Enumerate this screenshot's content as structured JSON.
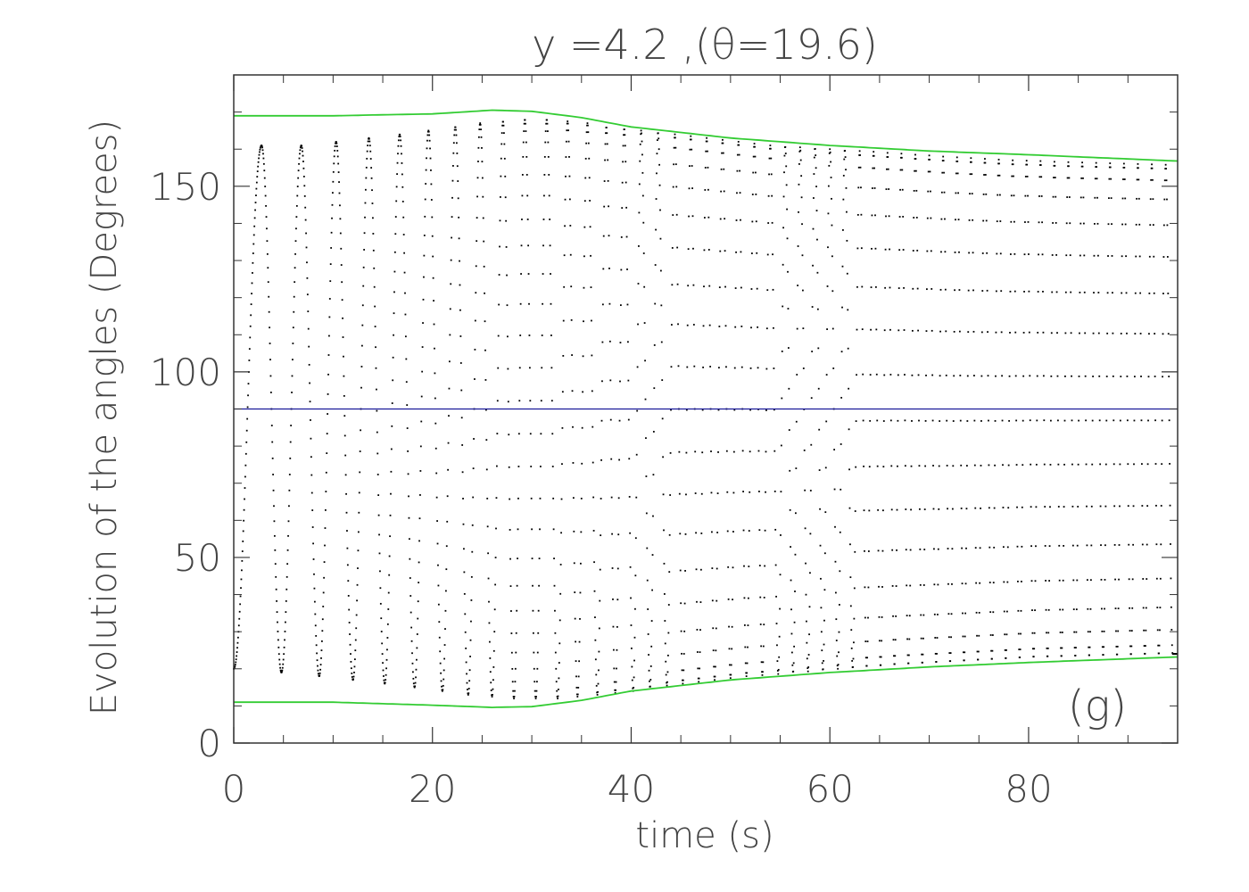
{
  "chart_data": {
    "type": "scatter",
    "title": "y  =4.2  ,(θ=19.6)",
    "xlabel": "time (s)",
    "ylabel": "Evolution of the angles (Degrees)",
    "annotation": "(g)",
    "xlim": [
      0,
      95
    ],
    "ylim": [
      0,
      180
    ],
    "x_ticks": [
      0,
      20,
      40,
      60,
      80
    ],
    "x_tick_labels": [
      "0",
      "20",
      "40",
      "60",
      "80"
    ],
    "y_ticks": [
      0,
      50,
      100,
      150
    ],
    "y_tick_labels": [
      "0",
      "50",
      "100",
      "150"
    ],
    "grid": false,
    "colors": {
      "upper_envelope": "#33cc33",
      "lower_envelope": "#33cc33",
      "reference": "#1a1a99",
      "points": "#000000"
    },
    "series": [
      {
        "kind": "envelope",
        "x": [
          0,
          10,
          20,
          26,
          30,
          35,
          40,
          50,
          60,
          70,
          80,
          95
        ],
        "y": [
          169,
          169,
          169.5,
          170.5,
          170.2,
          168.5,
          166,
          163,
          161,
          159.5,
          158.5,
          156.8
        ]
      },
      {
        "kind": "envelope",
        "x": [
          0,
          10,
          20,
          26,
          30,
          35,
          40,
          50,
          60,
          70,
          80,
          95
        ],
        "y": [
          11,
          11,
          10.2,
          9.6,
          9.8,
          11.5,
          14,
          17,
          19,
          20.5,
          21.7,
          23.2
        ]
      },
      {
        "kind": "reference",
        "x": [
          0,
          95
        ],
        "y": [
          90,
          90
        ]
      },
      {
        "kind": "oscillation",
        "peak_times": [
          2.8,
          6.8,
          10.3,
          13.6,
          16.7,
          19.6,
          22.3,
          24.8,
          27.1,
          29.3,
          31.5,
          33.6,
          35.6,
          37.5,
          39.3,
          41.0,
          42.7,
          44.4,
          46.0,
          47.6,
          49.2,
          50.8,
          52.4,
          54.0,
          55.5,
          57.0,
          58.5,
          60.0,
          61.5,
          63.0,
          64.4,
          65.8,
          67.2,
          68.6,
          70.0,
          71.4,
          72.8,
          74.2,
          75.6,
          77.0,
          78.4,
          79.8,
          81.2,
          82.6,
          84.0,
          85.4,
          86.8,
          88.2,
          89.6,
          91.0,
          92.4,
          93.8
        ],
        "peak_values": [
          161,
          161,
          162,
          163,
          164,
          165,
          166,
          167,
          167.5,
          168,
          168,
          167.5,
          167,
          166,
          165.5,
          165,
          164.5,
          164,
          163.5,
          163,
          162.5,
          162,
          161.5,
          161,
          160.8,
          160.5,
          160.3,
          160,
          159.8,
          159.5,
          159.3,
          159,
          158.8,
          158.5,
          158.3,
          158,
          157.8,
          157.6,
          157.4,
          157.2,
          157,
          156.9,
          156.8,
          156.6,
          156.5,
          156.4,
          156.3,
          156.2,
          156.1,
          156,
          155.9,
          155.8
        ],
        "trough_times": [
          4.8,
          8.6,
          12.0,
          15.2,
          18.2,
          21.0,
          23.6,
          26.0,
          28.2,
          30.4,
          32.6,
          34.6,
          36.6,
          38.4,
          40.2,
          41.9,
          43.6,
          45.2,
          46.8,
          48.4,
          50.0,
          51.6,
          53.2,
          54.8,
          56.3,
          57.8,
          59.3,
          60.8,
          62.3,
          63.7,
          65.1,
          66.5,
          67.9,
          69.3,
          70.7,
          72.1,
          73.5,
          74.9,
          76.3,
          77.7,
          79.1,
          80.5,
          81.9,
          83.3,
          84.7,
          86.1,
          87.5,
          88.9,
          90.3,
          91.7,
          93.1,
          94.5
        ],
        "trough_values": [
          19,
          18,
          17,
          16,
          15,
          14,
          13,
          12.5,
          12,
          12,
          12,
          12.5,
          13,
          13.5,
          14,
          15,
          15.5,
          16,
          16.5,
          17,
          17.5,
          18,
          18.3,
          18.6,
          19,
          19.3,
          19.6,
          20,
          20.2,
          20.5,
          20.7,
          21,
          21.2,
          21.4,
          21.6,
          21.8,
          22,
          22.2,
          22.4,
          22.6,
          22.8,
          23,
          23.1,
          23.2,
          23.3,
          23.4,
          23.5,
          23.6,
          23.7,
          23.8,
          23.9,
          24
        ]
      }
    ]
  }
}
